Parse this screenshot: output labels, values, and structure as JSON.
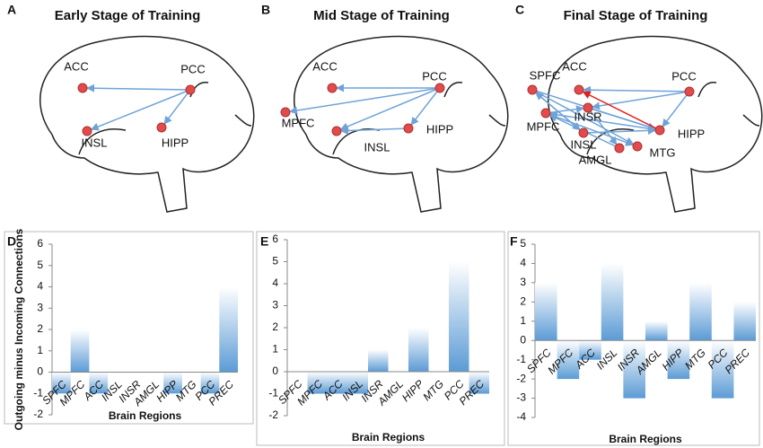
{
  "brain_panels": [
    {
      "letter": "A",
      "title": "Early Stage of Training",
      "nodes": [
        "ACC",
        "PCC",
        "INSL",
        "HIPP"
      ]
    },
    {
      "letter": "B",
      "title": "Mid Stage of Training",
      "nodes": [
        "ACC",
        "PCC",
        "MPFC",
        "INSL",
        "HIPP"
      ]
    },
    {
      "letter": "C",
      "title": "Final Stage of Training",
      "nodes": [
        "SPFC",
        "ACC",
        "PCC",
        "MPFC",
        "INSR",
        "INSL",
        "AMGL",
        "MTG",
        "HIPP"
      ]
    }
  ],
  "chart_data": [
    {
      "type": "bar",
      "letter": "D",
      "ylabel": "Outgoing minus Incoming Connections",
      "xlabel": "Brain Regions",
      "color": "#5b9bd5",
      "categories": [
        "SPFC",
        "MPFC",
        "ACC",
        "INSL",
        "INSR",
        "AMGL",
        "HIPP",
        "MTG",
        "PCC",
        "PREC"
      ],
      "values": [
        -1,
        2,
        -1,
        0,
        0,
        0,
        -1,
        0,
        -1,
        4
      ],
      "ylim": [
        -2,
        6
      ],
      "yticks": [
        -2,
        -1,
        0,
        1,
        2,
        3,
        4,
        5,
        6
      ]
    },
    {
      "type": "bar",
      "letter": "E",
      "xlabel": "Brain Regions",
      "color": "#5b9bd5",
      "categories": [
        "SPFC",
        "MPFC",
        "ACC",
        "INSL",
        "INSR",
        "AMGL",
        "HIPP",
        "MTG",
        "PCC",
        "PREC"
      ],
      "values": [
        0,
        -1,
        -1,
        -1,
        1,
        0,
        2,
        0,
        5,
        -1
      ],
      "ylim": [
        -2,
        6
      ],
      "yticks": [
        -2,
        -1,
        0,
        1,
        2,
        3,
        4,
        5,
        6
      ]
    },
    {
      "type": "bar",
      "letter": "F",
      "xlabel": "Brain Regions",
      "color": "#5b9bd5",
      "categories": [
        "SPFC",
        "MPFC",
        "ACC",
        "INSL",
        "INSR",
        "AMGL",
        "HIPP",
        "MTG",
        "PCC",
        "PREC"
      ],
      "values": [
        3,
        -2,
        -1,
        4,
        -3,
        1,
        -2,
        3,
        -3,
        2
      ],
      "ylim": [
        -4,
        5
      ],
      "yticks": [
        -4,
        -3,
        -2,
        -1,
        0,
        1,
        2,
        3,
        4,
        5
      ]
    }
  ]
}
